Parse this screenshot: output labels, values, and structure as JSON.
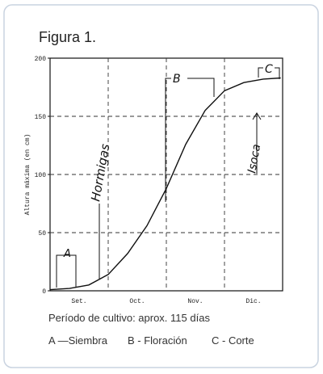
{
  "chart_data": {
    "type": "line",
    "title": "Figura 1.",
    "ylabel": "Altura máxima (en cm)",
    "categories": [
      "Set.",
      "Oct.",
      "Nov.",
      "Dic."
    ],
    "x": [
      0,
      10,
      20,
      30,
      40,
      50,
      60,
      70,
      80,
      90,
      100,
      110,
      119
    ],
    "xlim": [
      0,
      120
    ],
    "series": [
      {
        "color": "#111111",
        "values": [
          1,
          2,
          5,
          14,
          32,
          56,
          88,
          126,
          155,
          172,
          179,
          182,
          183
        ]
      }
    ],
    "ylim": [
      0,
      200
    ],
    "yticks": [
      0,
      50,
      100,
      150,
      200
    ],
    "grid": true,
    "annotations": [
      "A",
      "Hormigas",
      "B",
      "Isoca",
      "C"
    ],
    "caption": "Período de cultivo: aprox. 115 días",
    "legend_items": [
      "A —Siembra",
      "B - Floración",
      "C - Corte"
    ]
  }
}
